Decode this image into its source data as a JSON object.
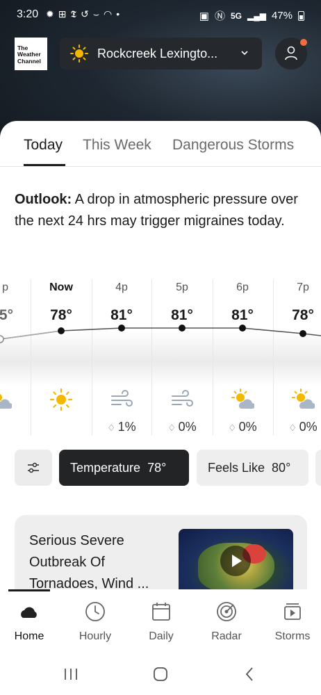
{
  "status_bar": {
    "time": "3:20",
    "network": "5G",
    "battery": "47%"
  },
  "app": {
    "logo_lines": [
      "The",
      "Weather",
      "Channel"
    ]
  },
  "location": {
    "name": "Rockcreek Lexingto..."
  },
  "tabs": [
    {
      "label": "Today",
      "active": true
    },
    {
      "label": "This Week",
      "active": false
    },
    {
      "label": "Dangerous Storms",
      "active": false
    }
  ],
  "outlook": {
    "label": "Outlook:",
    "text": " A drop in atmospheric pressure over the next 24 hrs may trigger migraines today."
  },
  "hourly": [
    {
      "hour": "p",
      "temp": "5°",
      "icon": "partly-cloudy-icon",
      "precip": ""
    },
    {
      "hour": "Now",
      "temp": "78°",
      "icon": "sun-icon",
      "precip": ""
    },
    {
      "hour": "4p",
      "temp": "81°",
      "icon": "wind-icon",
      "precip": "1%"
    },
    {
      "hour": "5p",
      "temp": "81°",
      "icon": "wind-icon",
      "precip": "0%"
    },
    {
      "hour": "6p",
      "temp": "81°",
      "icon": "partly-cloudy-icon",
      "precip": "0%"
    },
    {
      "hour": "7p",
      "temp": "78°",
      "icon": "partly-cloudy-icon",
      "precip": "0%"
    }
  ],
  "chips": {
    "temperature": {
      "label": "Temperature",
      "value": "78°"
    },
    "feels_like": {
      "label": "Feels Like",
      "value": "80°"
    }
  },
  "video_card": {
    "title": "Serious Severe Outbreak Of Tornadoes, Wind ..."
  },
  "bottom_nav": [
    {
      "label": "Home",
      "icon": "cloud-icon",
      "active": true
    },
    {
      "label": "Hourly",
      "icon": "clock-icon",
      "active": false
    },
    {
      "label": "Daily",
      "icon": "calendar-icon",
      "active": false
    },
    {
      "label": "Radar",
      "icon": "radar-icon",
      "active": false
    },
    {
      "label": "Storms",
      "icon": "storms-icon",
      "active": false
    }
  ],
  "colors": {
    "accent": "#f5b800",
    "notification": "#f26d3d",
    "pill_bg": "#25282c"
  }
}
